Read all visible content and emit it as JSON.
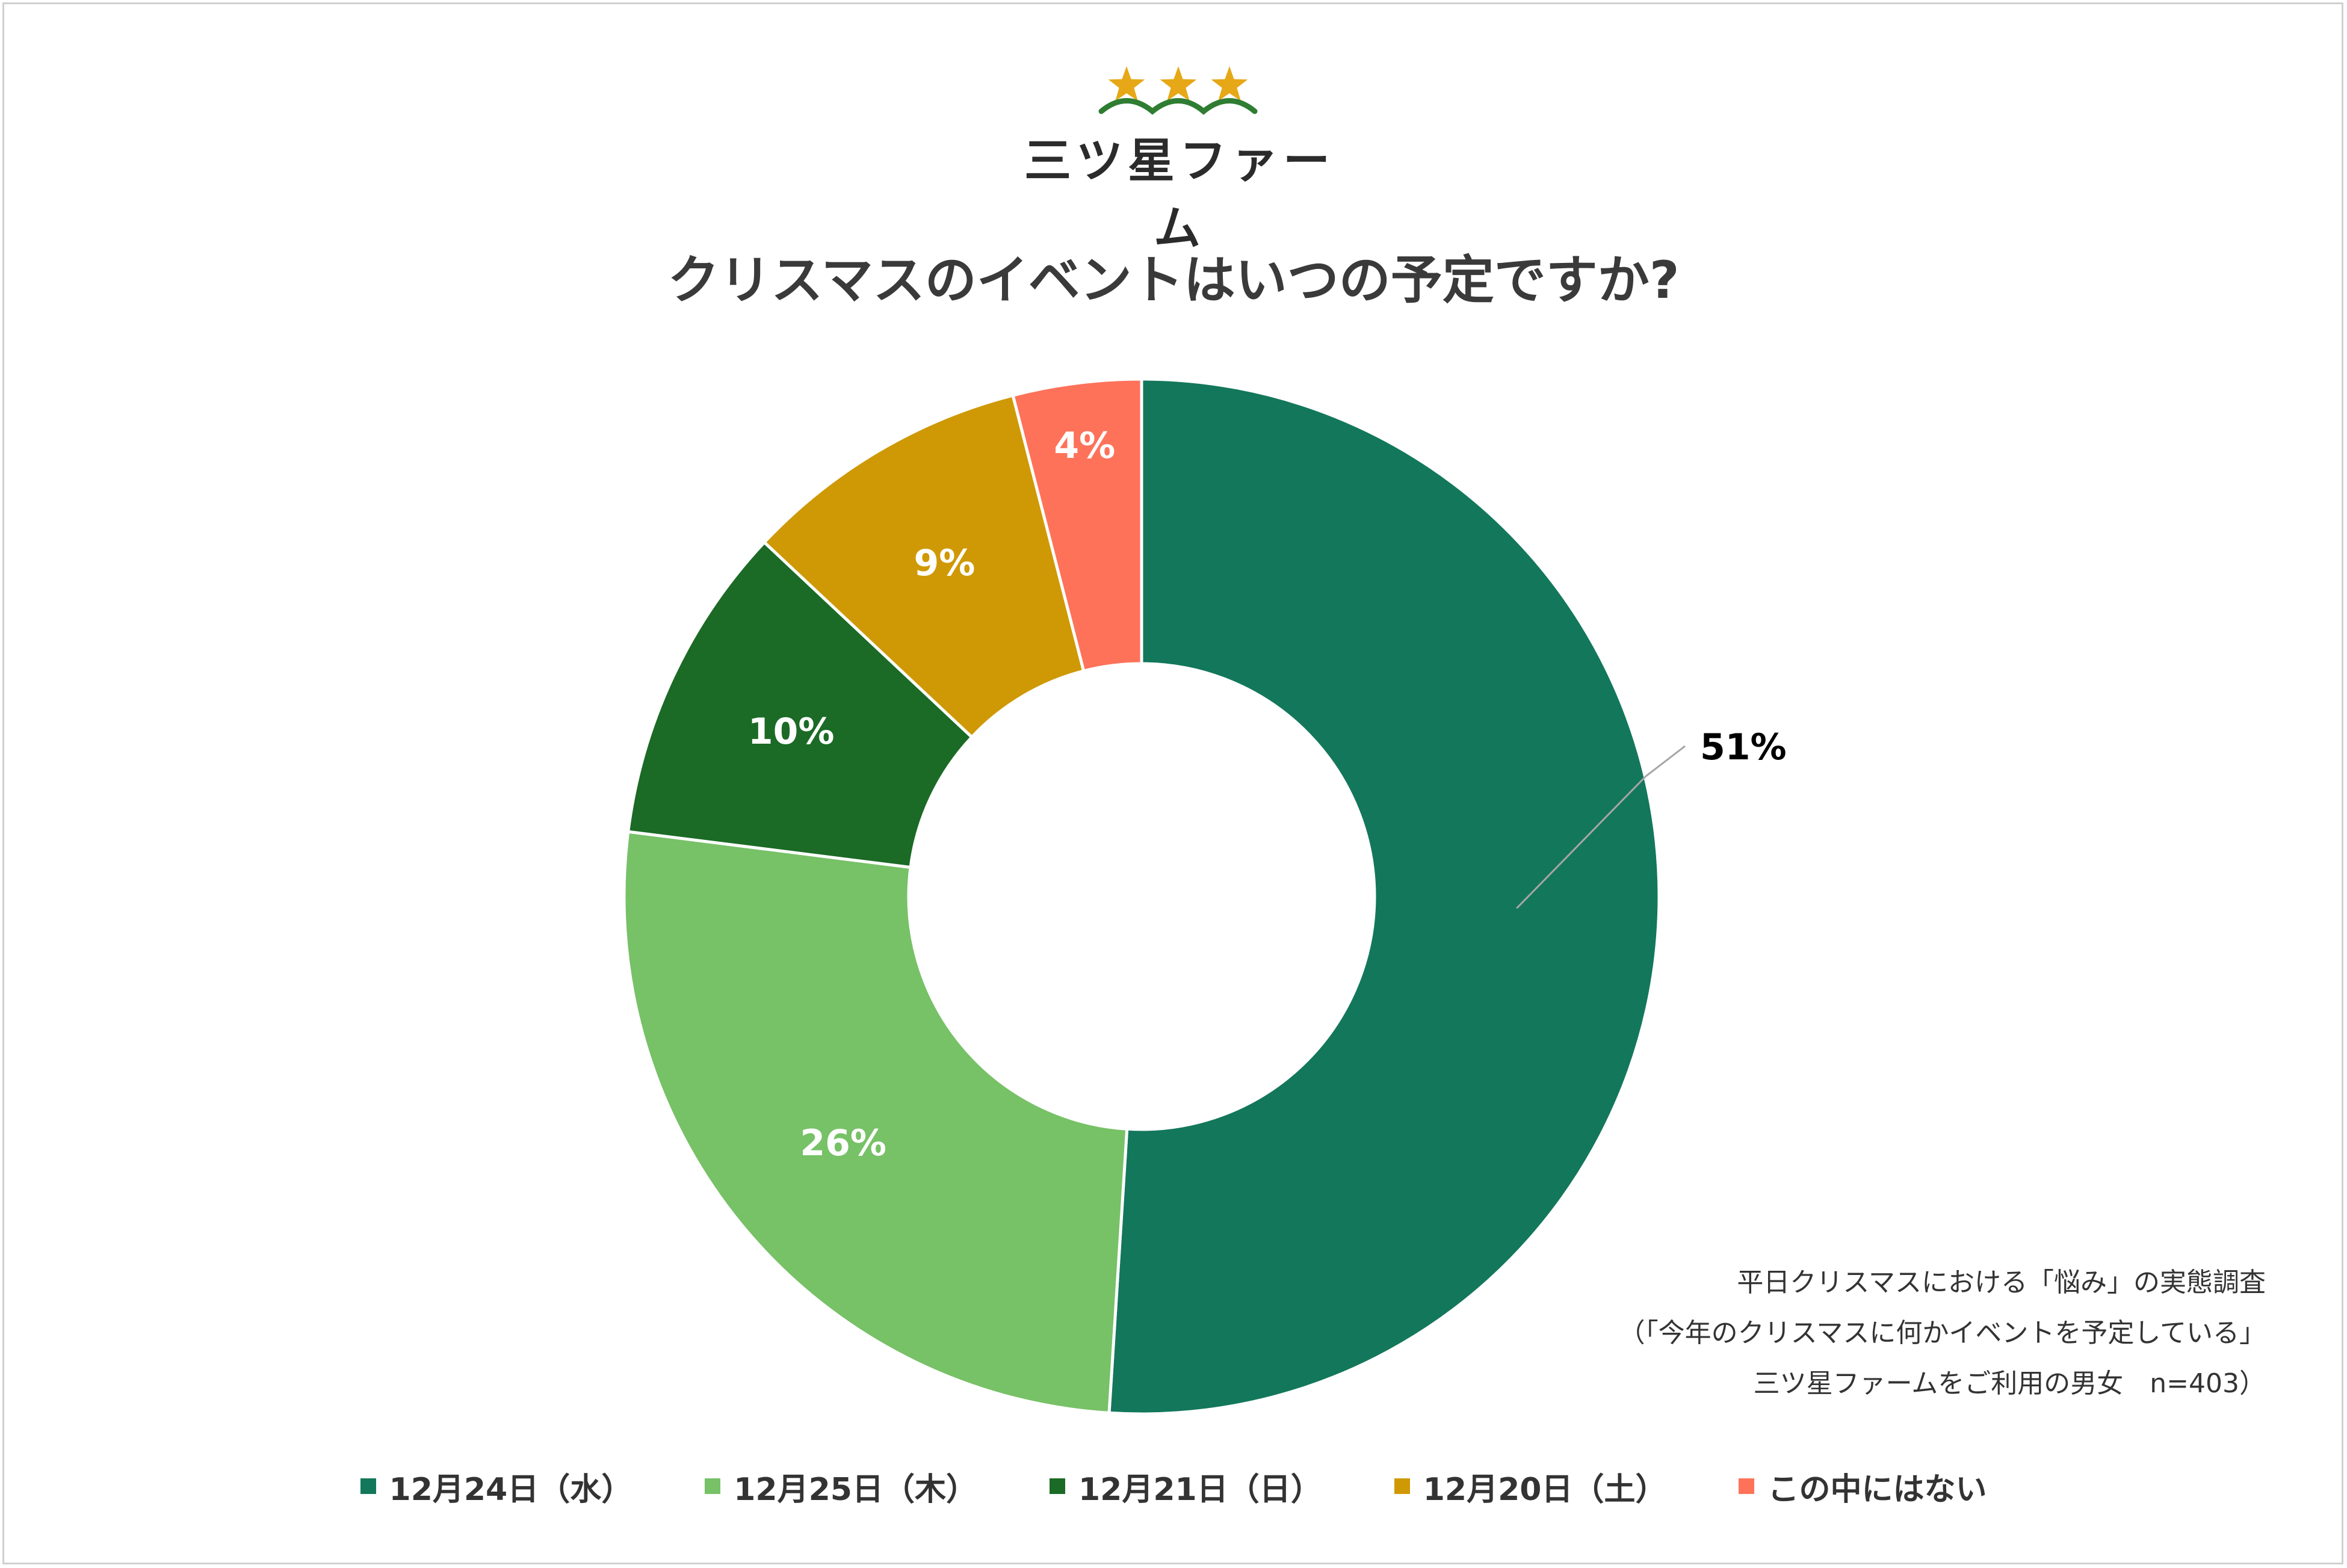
{
  "brand": {
    "name": "三ツ星ファーム",
    "star_color": "#e6a817",
    "wave_color": "#2f7d32"
  },
  "title": "クリスマスのイベントはいつの予定ですか?",
  "chart_data": {
    "type": "pie",
    "style": "donut",
    "title": "クリスマスのイベントはいつの予定ですか?",
    "categories": [
      "12月24日（水）",
      "12月25日（木）",
      "12月21日（日）",
      "12月20日（土）",
      "この中にはない"
    ],
    "values": [
      51,
      26,
      10,
      9,
      4
    ],
    "labels": [
      "51%",
      "26%",
      "10%",
      "9%",
      "4%"
    ],
    "colors": [
      "#13775b",
      "#77c167",
      "#1b6a25",
      "#cf9905",
      "#fe725a"
    ],
    "legend_position": "bottom"
  },
  "note": {
    "lines": [
      "平日クリスマスにおける「悩み」の実態調査",
      "（「今年のクリスマスに何かイベントを予定している」",
      "三ツ星ファームをご利用の男女　n=403）"
    ]
  }
}
